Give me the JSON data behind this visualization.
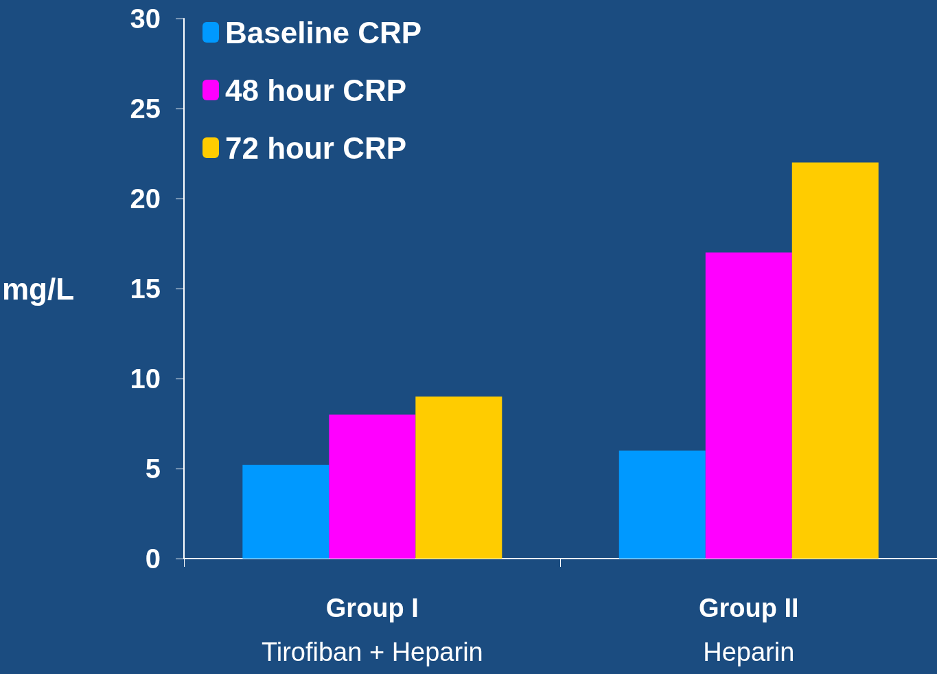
{
  "chart_data": {
    "type": "bar",
    "ylabel": "mg/L",
    "categories": [
      "Group I\nTirofiban + Heparin",
      "Group II\nHeparin"
    ],
    "series": [
      {
        "name": "Baseline CRP",
        "color": "#0099ff",
        "values": [
          5.2,
          6
        ]
      },
      {
        "name": "48 hour CRP",
        "color": "#ff00ff",
        "values": [
          8,
          17
        ]
      },
      {
        "name": "72 hour CRP",
        "color": "#ffcc00",
        "values": [
          9,
          22
        ]
      }
    ],
    "ylim": [
      0,
      30
    ],
    "yticks": [
      0,
      5,
      10,
      15,
      20,
      25,
      30
    ],
    "grid": false,
    "legend": "top left"
  }
}
